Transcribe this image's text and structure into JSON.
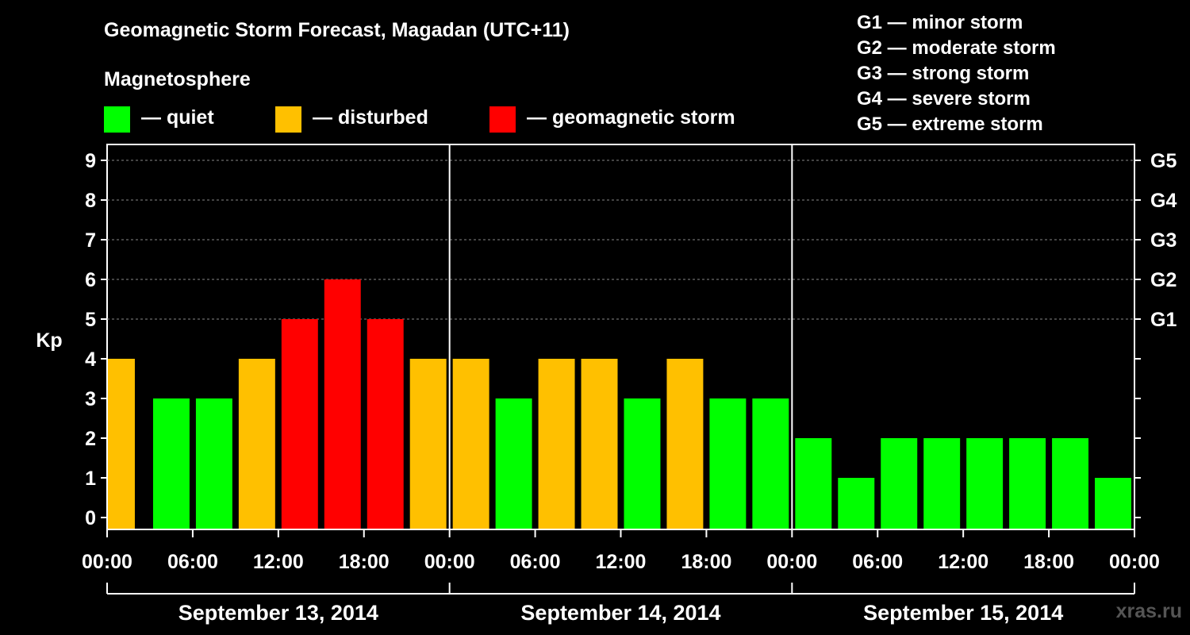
{
  "header": {
    "title": "Geomagnetic Storm Forecast, Magadan (UTC+11)",
    "magnetosphere_label": "Magnetosphere"
  },
  "legend": [
    {
      "label": "— quiet",
      "color": "#00ff00"
    },
    {
      "label": "— disturbed",
      "color": "#ffc000"
    },
    {
      "label": "— geomagnetic storm",
      "color": "#ff0000"
    }
  ],
  "storm_scale": [
    "G1 — minor storm",
    "G2 — moderate storm",
    "G3 — strong storm",
    "G4 — severe storm",
    "G5 — extreme storm"
  ],
  "watermark": "xras.ru",
  "chart_data": {
    "type": "bar",
    "title": "Geomagnetic Storm Forecast, Magadan (UTC+11)",
    "ylabel": "Kp",
    "ylim": [
      0,
      9
    ],
    "yticks": [
      "0",
      "1",
      "2",
      "3",
      "4",
      "5",
      "6",
      "7",
      "8",
      "9"
    ],
    "right_ticks": [
      {
        "value": 5,
        "label": "G1"
      },
      {
        "value": 6,
        "label": "G2"
      },
      {
        "value": 7,
        "label": "G3"
      },
      {
        "value": 8,
        "label": "G4"
      },
      {
        "value": 9,
        "label": "G5"
      }
    ],
    "x_tick_labels": [
      "00:00",
      "06:00",
      "12:00",
      "18:00",
      "00:00",
      "06:00",
      "12:00",
      "18:00",
      "00:00",
      "06:00",
      "12:00",
      "18:00",
      "00:00"
    ],
    "days": [
      "September 13, 2014",
      "September 14, 2014",
      "September 15, 2014"
    ],
    "interval_hours": 3,
    "bar_start_hours": [
      0,
      3,
      6,
      9,
      12,
      15,
      18,
      21,
      24,
      27,
      30,
      33,
      36,
      39,
      42,
      45,
      48,
      51,
      54,
      57,
      60,
      63,
      66,
      69
    ],
    "values": [
      4,
      3,
      3,
      4,
      5,
      6,
      5,
      4,
      4,
      3,
      4,
      4,
      3,
      4,
      3,
      3,
      2,
      1,
      2,
      2,
      2,
      2,
      2,
      1
    ],
    "color_rules": {
      "quiet_max": 3,
      "disturbed": 4,
      "storm_min": 5
    },
    "colors": {
      "quiet": "#00ff00",
      "disturbed": "#ffc000",
      "storm": "#ff0000"
    }
  }
}
